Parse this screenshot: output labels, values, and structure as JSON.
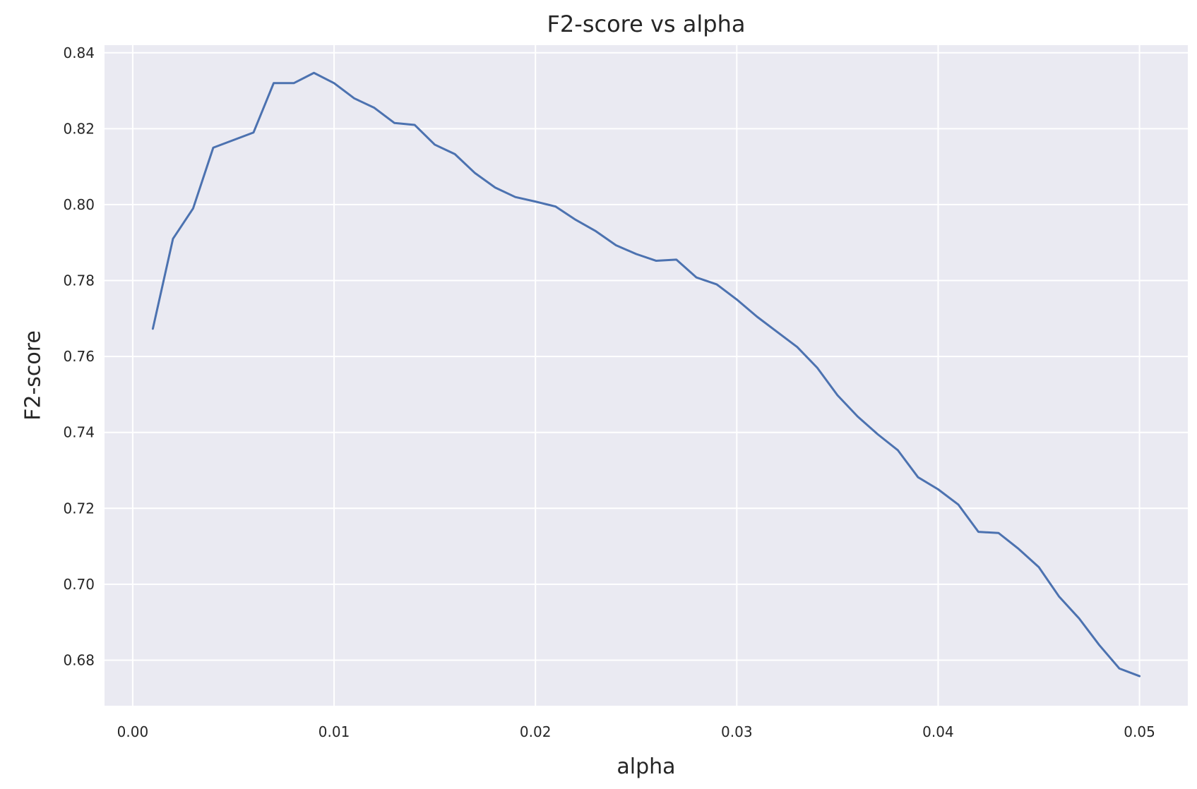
{
  "chart_data": {
    "type": "line",
    "title": "F2-score vs alpha",
    "xlabel": "alpha",
    "ylabel": "F2-score",
    "xlim": [
      -0.0014,
      0.0524
    ],
    "ylim": [
      0.668,
      0.842
    ],
    "grid": true,
    "colors": {
      "plot_background": "#EAEAF2",
      "grid": "#FFFFFF",
      "line": "#4C72B0",
      "text": "#262626"
    },
    "x_ticks": [
      0.0,
      0.01,
      0.02,
      0.03,
      0.04,
      0.05
    ],
    "x_tick_labels": [
      "0.00",
      "0.01",
      "0.02",
      "0.03",
      "0.04",
      "0.05"
    ],
    "y_ticks": [
      0.68,
      0.7,
      0.72,
      0.74,
      0.76,
      0.78,
      0.8,
      0.82,
      0.84
    ],
    "y_tick_labels": [
      "0.68",
      "0.70",
      "0.72",
      "0.74",
      "0.76",
      "0.78",
      "0.80",
      "0.82",
      "0.84"
    ],
    "series": [
      {
        "x": [
          0.001,
          0.002,
          0.003,
          0.004,
          0.005,
          0.006,
          0.007,
          0.008,
          0.009,
          0.01,
          0.011,
          0.012,
          0.013,
          0.014,
          0.015,
          0.016,
          0.017,
          0.018,
          0.019,
          0.02,
          0.021,
          0.022,
          0.023,
          0.024,
          0.025,
          0.026,
          0.027,
          0.028,
          0.029,
          0.03,
          0.031,
          0.032,
          0.033,
          0.034,
          0.035,
          0.036,
          0.037,
          0.038,
          0.039,
          0.04,
          0.041,
          0.042,
          0.043,
          0.044,
          0.045,
          0.046,
          0.047,
          0.048,
          0.049,
          0.05
        ],
        "y": [
          0.7673,
          0.791,
          0.799,
          0.815,
          0.817,
          0.819,
          0.832,
          0.832,
          0.8347,
          0.832,
          0.828,
          0.8255,
          0.8215,
          0.821,
          0.8158,
          0.8133,
          0.8083,
          0.8045,
          0.802,
          0.8008,
          0.7995,
          0.796,
          0.793,
          0.7893,
          0.787,
          0.7852,
          0.7855,
          0.7808,
          0.779,
          0.775,
          0.7705,
          0.7665,
          0.7625,
          0.757,
          0.7498,
          0.7442,
          0.7395,
          0.7353,
          0.7282,
          0.725,
          0.721,
          0.7138,
          0.7135,
          0.7093,
          0.7045,
          0.6968,
          0.691,
          0.684,
          0.6778,
          0.6758
        ]
      }
    ]
  }
}
